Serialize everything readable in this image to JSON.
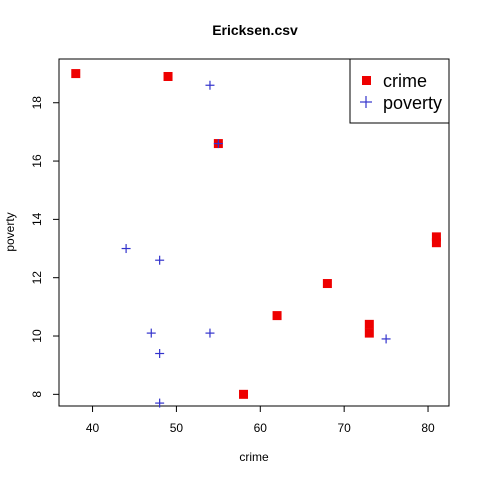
{
  "chart_data": {
    "type": "scatter",
    "title": "Ericksen.csv",
    "xlabel": "crime",
    "ylabel": "poverty",
    "xlim": [
      36,
      82.5
    ],
    "ylim": [
      7.6,
      19.5
    ],
    "xticks": [
      40,
      50,
      60,
      70,
      80
    ],
    "yticks": [
      8,
      10,
      12,
      14,
      16,
      18
    ],
    "grid": false,
    "legend": "top-right",
    "series": [
      {
        "name": "crime",
        "marker": "square",
        "color": "#ee0000",
        "points": [
          {
            "x": 38,
            "y": 19.0
          },
          {
            "x": 49,
            "y": 18.9
          },
          {
            "x": 55,
            "y": 16.6
          },
          {
            "x": 58,
            "y": 8.0
          },
          {
            "x": 62,
            "y": 10.7
          },
          {
            "x": 68,
            "y": 11.8
          },
          {
            "x": 73,
            "y": 10.4
          },
          {
            "x": 73,
            "y": 10.1
          },
          {
            "x": 81,
            "y": 13.4
          },
          {
            "x": 81,
            "y": 13.2
          }
        ]
      },
      {
        "name": "poverty",
        "marker": "plus",
        "color": "#3333cc",
        "points": [
          {
            "x": 44,
            "y": 13.0
          },
          {
            "x": 47,
            "y": 10.1
          },
          {
            "x": 48,
            "y": 12.6
          },
          {
            "x": 48,
            "y": 9.4
          },
          {
            "x": 48,
            "y": 7.7
          },
          {
            "x": 54,
            "y": 18.6
          },
          {
            "x": 54,
            "y": 10.1
          },
          {
            "x": 55,
            "y": 16.6
          },
          {
            "x": 75,
            "y": 9.9
          }
        ]
      }
    ]
  }
}
